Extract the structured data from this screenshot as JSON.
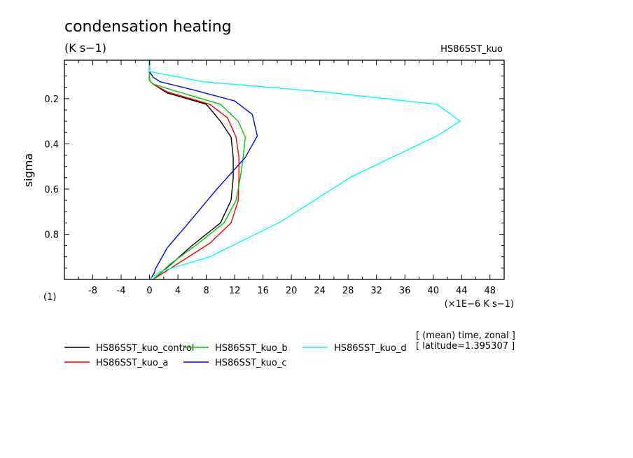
{
  "chart_data": {
    "type": "line",
    "title": "condensation heating",
    "units": "(K s−1)",
    "experiment": "HS86SST_kuo",
    "xlabel": "(×1E−6 K s−1)",
    "ylabel": "sigma",
    "y_corner_label": "(1)",
    "xlim": [
      -12,
      50
    ],
    "ylim": [
      1.0,
      0.03
    ],
    "x_ticks": [
      -8,
      -4,
      0,
      4,
      8,
      12,
      16,
      20,
      24,
      28,
      32,
      36,
      40,
      44,
      48
    ],
    "y_ticks": [
      0.2,
      0.4,
      0.6,
      0.8
    ],
    "averaging_note": [
      "[ (mean) time, zonal ]",
      "[ latitude=1.395307 ]"
    ],
    "legend_placement": "bottom-left",
    "series": [
      {
        "name": "HS86SST_kuo_control",
        "color": "#000000",
        "points": [
          [
            0.0,
            0.03
          ],
          [
            0.0,
            0.08
          ],
          [
            0.0,
            0.12
          ],
          [
            0.5,
            0.135
          ],
          [
            2.5,
            0.175
          ],
          [
            8.0,
            0.225
          ],
          [
            10.0,
            0.3
          ],
          [
            11.5,
            0.37
          ],
          [
            11.8,
            0.46
          ],
          [
            11.8,
            0.55
          ],
          [
            11.5,
            0.65
          ],
          [
            10.0,
            0.75
          ],
          [
            6.0,
            0.85
          ],
          [
            3.5,
            0.92
          ],
          [
            0.5,
            1.0
          ]
        ]
      },
      {
        "name": "HS86SST_kuo_a",
        "color": "#ff0000",
        "points": [
          [
            0.0,
            0.03
          ],
          [
            0.0,
            0.08
          ],
          [
            0.0,
            0.12
          ],
          [
            0.5,
            0.135
          ],
          [
            2.5,
            0.17
          ],
          [
            8.5,
            0.225
          ],
          [
            11.0,
            0.285
          ],
          [
            12.2,
            0.37
          ],
          [
            12.6,
            0.46
          ],
          [
            12.6,
            0.55
          ],
          [
            12.5,
            0.65
          ],
          [
            11.5,
            0.75
          ],
          [
            8.5,
            0.84
          ],
          [
            4.0,
            0.93
          ],
          [
            0.5,
            1.0
          ]
        ]
      },
      {
        "name": "HS86SST_kuo_b",
        "color": "#00cc00",
        "points": [
          [
            0.0,
            0.03
          ],
          [
            0.0,
            0.08
          ],
          [
            0.0,
            0.12
          ],
          [
            0.5,
            0.135
          ],
          [
            3.5,
            0.165
          ],
          [
            10.0,
            0.225
          ],
          [
            12.5,
            0.3
          ],
          [
            13.5,
            0.37
          ],
          [
            13.2,
            0.46
          ],
          [
            12.8,
            0.55
          ],
          [
            12.2,
            0.65
          ],
          [
            10.5,
            0.75
          ],
          [
            6.5,
            0.85
          ],
          [
            3.0,
            0.93
          ],
          [
            0.5,
            1.0
          ]
        ]
      },
      {
        "name": "HS86SST_kuo_c",
        "color": "#0000ff",
        "points": [
          [
            0.0,
            0.03
          ],
          [
            0.0,
            0.08
          ],
          [
            0.5,
            0.105
          ],
          [
            1.5,
            0.125
          ],
          [
            6.0,
            0.16
          ],
          [
            12.0,
            0.21
          ],
          [
            14.5,
            0.27
          ],
          [
            15.2,
            0.365
          ],
          [
            13.5,
            0.46
          ],
          [
            9.5,
            0.6
          ],
          [
            5.5,
            0.75
          ],
          [
            2.5,
            0.86
          ],
          [
            0.8,
            0.955
          ],
          [
            0.7,
            0.97
          ],
          [
            0.1,
            1.0
          ]
        ]
      },
      {
        "name": "HS86SST_kuo_d",
        "color": "#00ffff",
        "points": [
          [
            0.0,
            0.03
          ],
          [
            0.0,
            0.08
          ],
          [
            7.5,
            0.125
          ],
          [
            24.5,
            0.17
          ],
          [
            40.5,
            0.225
          ],
          [
            43.8,
            0.3
          ],
          [
            40.5,
            0.365
          ],
          [
            28.5,
            0.545
          ],
          [
            18.5,
            0.745
          ],
          [
            8.5,
            0.9
          ],
          [
            1.5,
            0.965
          ],
          [
            0.0,
            1.0
          ]
        ]
      }
    ]
  }
}
